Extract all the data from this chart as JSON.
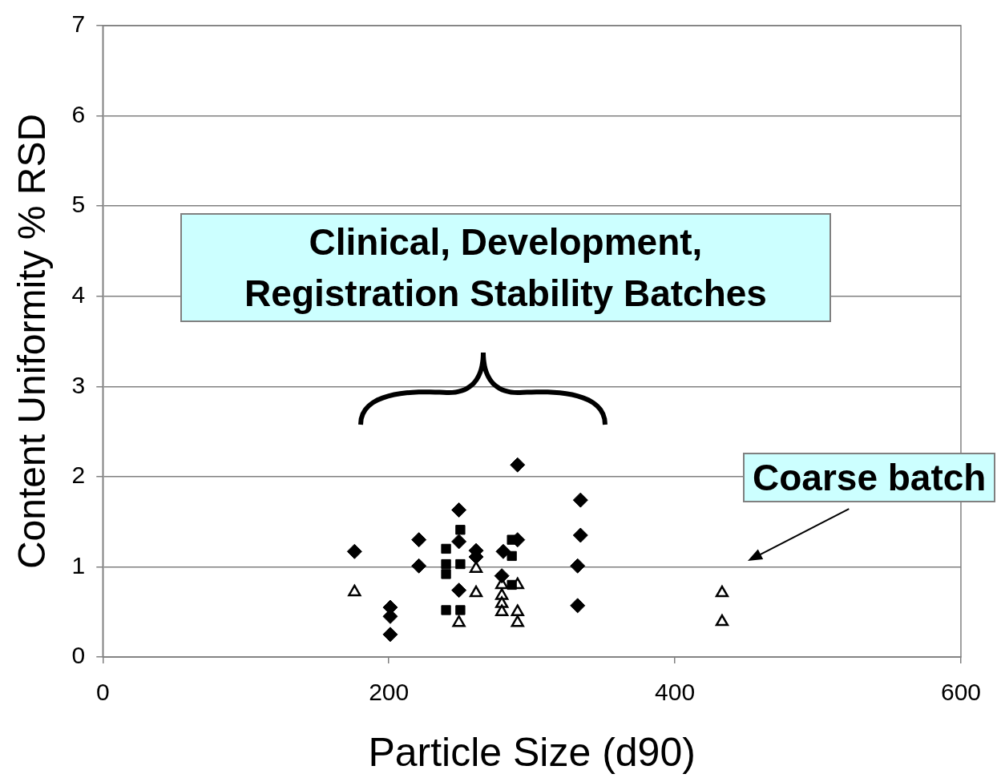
{
  "chart_data": {
    "type": "scatter",
    "xlabel": "Particle Size (d90)",
    "ylabel": "Content Uniformity % RSD",
    "xlim": [
      0,
      600
    ],
    "xticks": [
      0,
      200,
      400,
      600
    ],
    "ylim": [
      0,
      7
    ],
    "yticks": [
      0,
      1,
      2,
      3,
      4,
      5,
      6,
      7
    ],
    "grid": "y",
    "legend": false,
    "annotations": [
      "Clinical, Development, Registration Stability Batches",
      {
        "text": "Coarse batch",
        "x": 433,
        "y": 0.71
      }
    ],
    "series": [
      {
        "color": "#000000",
        "marker": "diamond",
        "x": [
          176,
          201,
          201,
          201,
          221,
          221,
          249,
          249,
          249,
          261,
          261,
          280,
          279,
          290,
          290,
          334,
          334,
          332,
          332
        ],
        "values": [
          1.17,
          0.55,
          0.45,
          0.25,
          1.3,
          1.01,
          1.63,
          1.28,
          0.74,
          1.18,
          1.11,
          1.17,
          0.9,
          2.13,
          1.3,
          1.74,
          1.35,
          1.01,
          0.57
        ]
      },
      {
        "color": "#000000",
        "marker": "square",
        "x": [
          240,
          250,
          240,
          240,
          250,
          240,
          250,
          286,
          286,
          286
        ],
        "values": [
          1.2,
          1.41,
          1.03,
          0.92,
          1.03,
          0.52,
          0.52,
          1.3,
          1.12,
          0.8
        ]
      },
      {
        "color": "#000000",
        "marker": "triangle",
        "x": [
          176,
          261,
          261,
          249,
          279,
          279,
          279,
          279,
          290,
          290,
          290,
          433,
          433
        ],
        "values": [
          0.72,
          0.98,
          0.71,
          0.38,
          0.8,
          0.68,
          0.59,
          0.5,
          0.8,
          0.5,
          0.38,
          0.71,
          0.39
        ]
      }
    ]
  }
}
